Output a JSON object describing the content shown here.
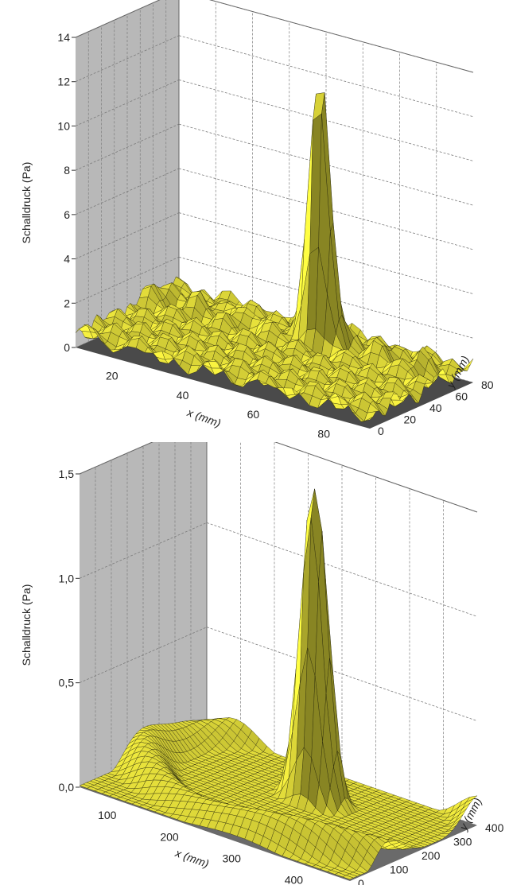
{
  "colors": {
    "surface": "#e3dd3a",
    "mesh": "#1f1f08",
    "left_wall": "#b8b8b8",
    "back_wall": "#ffffff",
    "floor_top": "#4a4a4a",
    "floor_bottom": "#6a6a6a",
    "grid": "#7c7c7c"
  },
  "chart_data": [
    {
      "type": "surface",
      "xlabel": "x (mm)",
      "ylabel": "y (mm)",
      "zlabel": "Schalldruck (Pa)",
      "xlim": [
        0,
        80
      ],
      "ylim": [
        0,
        80
      ],
      "zlim": [
        0,
        14
      ],
      "x_ticks": [
        "20",
        "40",
        "60",
        "80"
      ],
      "y_ticks": [
        "0",
        "20",
        "40",
        "60",
        "80"
      ],
      "z_ticks": [
        "0",
        "2",
        "4",
        "6",
        "8",
        "10",
        "12",
        "14"
      ],
      "peak": {
        "x": 46,
        "y": 58,
        "z": 12.8
      },
      "background_level": 1.2
    },
    {
      "type": "surface",
      "xlabel": "x (mm)",
      "ylabel": "y (mm)",
      "zlabel": "Schalldruck (Pa)",
      "xlim": [
        0,
        450
      ],
      "ylim": [
        0,
        450
      ],
      "zlim": [
        0,
        1.5
      ],
      "x_ticks": [
        "100",
        "200",
        "300",
        "400"
      ],
      "y_ticks": [
        "0",
        "100",
        "200",
        "300",
        "400"
      ],
      "z_ticks": [
        "0,0",
        "0,5",
        "1,0",
        "1,5"
      ],
      "peak": {
        "x": 250,
        "y": 300,
        "z": 1.35
      },
      "side_lobe_level": 0.35
    }
  ]
}
